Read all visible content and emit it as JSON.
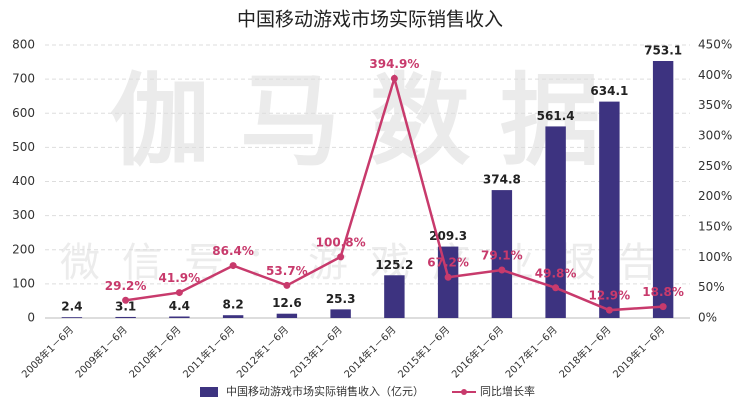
{
  "chart_data": {
    "type": "bar",
    "title": "中国移动游戏市场实际销售收入",
    "watermark": [
      "伽马数据",
      "微信号：游戏产业报告"
    ],
    "categories": [
      "2008年1－6月",
      "2009年1－6月",
      "2010年1－6月",
      "2011年1－6月",
      "2012年1－6月",
      "2013年1－6月",
      "2014年1－6月",
      "2015年1－6月",
      "2016年1－6月",
      "2017年1－6月",
      "2018年1－6月",
      "2019年1－6月"
    ],
    "series": [
      {
        "name": "中国移动游戏市场实际销售收入（亿元）",
        "type": "bar",
        "color": "#3d3380",
        "values": [
          2.4,
          3.1,
          4.4,
          8.2,
          12.6,
          25.3,
          125.2,
          209.3,
          374.8,
          561.4,
          634.1,
          753.1
        ]
      },
      {
        "name": "同比增长率",
        "type": "line",
        "axis": "y2",
        "color": "#c83a6c",
        "values": [
          null,
          29.2,
          41.9,
          86.4,
          53.7,
          100.8,
          394.9,
          67.2,
          79.1,
          49.8,
          12.9,
          18.8
        ],
        "value_labels": [
          null,
          "29.2%",
          "41.9%",
          "86.4%",
          "53.7%",
          "100.8%",
          "394.9%",
          "67.2%",
          "79.1%",
          "49.8%",
          "12.9%",
          "18.8%"
        ]
      }
    ],
    "ylim": [
      0,
      800
    ],
    "yticks": [
      0,
      100,
      200,
      300,
      400,
      500,
      600,
      700,
      800
    ],
    "y2lim": [
      0,
      450
    ],
    "y2ticks": [
      {
        "value": 0,
        "label": "0%"
      },
      {
        "value": 50,
        "label": "50%"
      },
      {
        "value": 100,
        "label": "100%"
      },
      {
        "value": 150,
        "label": "150%"
      },
      {
        "value": 200,
        "label": "200%"
      },
      {
        "value": 250,
        "label": "250%"
      },
      {
        "value": 300,
        "label": "300%"
      },
      {
        "value": 350,
        "label": "350%"
      },
      {
        "value": 400,
        "label": "400%"
      },
      {
        "value": 450,
        "label": "450%"
      }
    ],
    "grid": true,
    "legend": "bottom"
  }
}
